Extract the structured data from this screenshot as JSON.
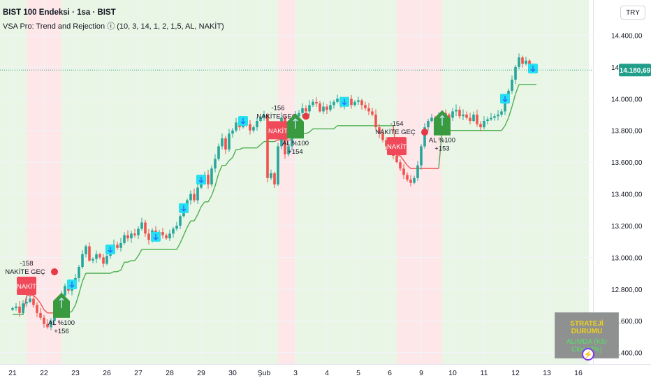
{
  "header": {
    "symbol_title": "BIST 100 Endeksi · 1sa · BIST",
    "indicator_title": "VSA Pro: Trend and Rejection ⓘ (10, 3, 14, 1, 2, 1,5, AL, NAKİT)"
  },
  "currency": "TRY",
  "status_panel": {
    "heading": "STRATEJİ DURUMU",
    "body": "ALIMDA (Kâr Closed%)"
  },
  "bolt_icon": "lightning-icon",
  "colors": {
    "up": "#26a69a",
    "down": "#ef5350",
    "trend_up": "#4caf50",
    "trend_down": "#f05454",
    "bg_bull": "#e9f6e5",
    "bg_bear": "#fde7e9",
    "cyan": "#26e0f0",
    "price_tag": "#1f9e8a"
  },
  "chart_data": {
    "type": "candlestick",
    "ylim": [
      12350,
      14600
    ],
    "y_ticks": [
      12400,
      12600,
      12800,
      13000,
      13200,
      13400,
      13600,
      13800,
      14000,
      14200,
      14400
    ],
    "y_tick_labels": [
      "12.400,00",
      "12.600,00",
      "12.800,00",
      "13.000,00",
      "13.200,00",
      "13.400,00",
      "13.600,00",
      "13.800,00",
      "14.000,00",
      "14.200,00",
      "14.400,00"
    ],
    "last_price": 14180.69,
    "last_price_label": "14.180,69",
    "x_labels": [
      "21",
      "22",
      "23",
      "26",
      "27",
      "28",
      "29",
      "30",
      "Şub",
      "3",
      "4",
      "5",
      "6",
      "9",
      "10",
      "11",
      "12",
      "13",
      "16"
    ],
    "x_label_slots": [
      0,
      9,
      18,
      27,
      36,
      45,
      54,
      63,
      72,
      81,
      90,
      99,
      108,
      117,
      126,
      135,
      144,
      153,
      162
    ],
    "total_slots": 165,
    "close": [
      12680,
      12690,
      12650,
      12710,
      12720,
      12740,
      12700,
      12650,
      12620,
      12580,
      12560,
      12600,
      12650,
      12700,
      12760,
      12820,
      12790,
      12830,
      12870,
      12940,
      13020,
      13070,
      12980,
      12990,
      13020,
      13000,
      12960,
      13010,
      13050,
      13080,
      13060,
      13090,
      13140,
      13120,
      13150,
      13140,
      13180,
      13220,
      13150,
      13110,
      13170,
      13130,
      13160,
      13140,
      13120,
      13150,
      13180,
      13200,
      13260,
      13310,
      13360,
      13400,
      13360,
      13440,
      13490,
      13520,
      13460,
      13560,
      13620,
      13700,
      13750,
      13680,
      13780,
      13800,
      13850,
      13820,
      13860,
      13840,
      13800,
      13820,
      13860,
      13880,
      13900,
      13500,
      13530,
      13460,
      13700,
      13880,
      13650,
      13700,
      13850,
      13890,
      13910,
      13940,
      13920,
      13960,
      13980,
      13970,
      13920,
      13950,
      13930,
      13960,
      13980,
      14000,
      13960,
      13980,
      14000,
      13960,
      13980,
      13990,
      13960,
      13940,
      13920,
      13900,
      13820,
      13780,
      13740,
      13700,
      13670,
      13640,
      13600,
      13560,
      13520,
      13490,
      13470,
      13500,
      13580,
      13700,
      13820,
      13860,
      13880,
      13870,
      13890,
      13910,
      13900,
      13880,
      13920,
      13930,
      13890,
      13900,
      13880,
      13860,
      13900,
      13840,
      13820,
      13860,
      13870,
      13880,
      13890,
      13900,
      13920,
      14000,
      14050,
      14120,
      14200,
      14260,
      14220,
      14240,
      14200,
      14190,
      14181
    ],
    "signals": [
      {
        "type": "sell",
        "label": "NAKİT",
        "pnl": "-158",
        "caption": "NAKİTE GEÇ",
        "slot": 4
      },
      {
        "type": "buy",
        "label": "AL %100",
        "pnl": "+156",
        "slot": 14
      },
      {
        "type": "sell",
        "label": "NAKİT",
        "pnl": "-156",
        "caption": "NAKİTE GEÇ",
        "slot": 76
      },
      {
        "type": "buy",
        "label": "AL %100",
        "pnl": "+154",
        "slot": 81
      },
      {
        "type": "sell",
        "label": "NAKİT",
        "pnl": "-154",
        "caption": "NAKİTE GEÇ",
        "slot": 110
      },
      {
        "type": "buy",
        "label": "AL %100",
        "pnl": "+153",
        "slot": 123
      }
    ]
  }
}
